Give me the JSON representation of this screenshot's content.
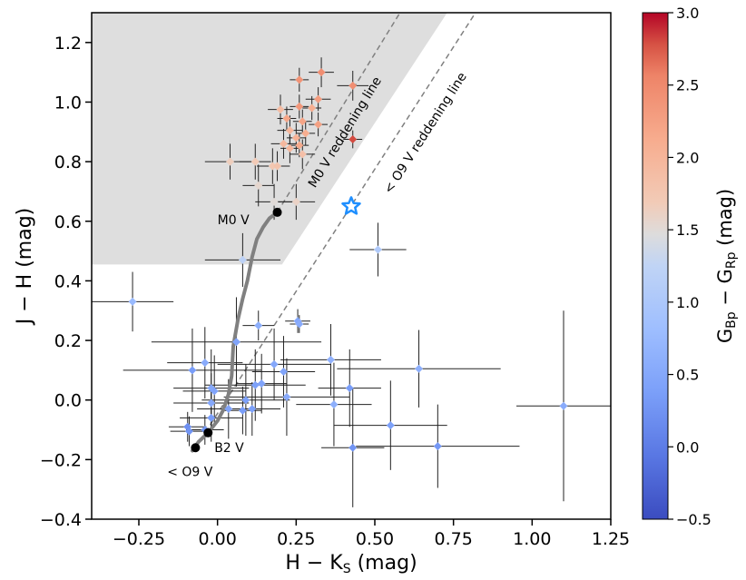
{
  "chart_data": {
    "type": "scatter",
    "xlabel": "H − K",
    "xlabel_sub": "S",
    "xlabel_unit": " (mag)",
    "ylabel": "J − H (mag)",
    "xlim": [
      -0.4,
      1.25
    ],
    "ylim": [
      -0.4,
      1.3
    ],
    "xticks": [
      -0.25,
      0.0,
      0.25,
      0.5,
      0.75,
      1.0,
      1.25
    ],
    "xtick_labels": [
      "−0.25",
      "0.00",
      "0.25",
      "0.50",
      "0.75",
      "1.00",
      "1.25"
    ],
    "yticks": [
      -0.4,
      -0.2,
      0.0,
      0.2,
      0.4,
      0.6,
      0.8,
      1.0,
      1.2
    ],
    "ytick_labels": [
      "−0.4",
      "−0.2",
      "0.0",
      "0.2",
      "0.4",
      "0.6",
      "0.8",
      "1.0",
      "1.2"
    ],
    "grid": false,
    "colorbar": {
      "label_main": "G",
      "label_sub1": "Bp",
      "label_mid": " − G",
      "label_sub2": "Rp",
      "label_unit": " (mag)",
      "range": [
        -0.5,
        3.0
      ],
      "ticks": [
        -0.5,
        0.0,
        0.5,
        1.0,
        1.5,
        2.0,
        2.5,
        3.0
      ],
      "tick_labels": [
        "−0.5",
        "0.0",
        "0.5",
        "1.0",
        "1.5",
        "2.0",
        "2.5",
        "3.0"
      ],
      "colormap": "coolwarm"
    },
    "shaded_region": [
      [
        -0.4,
        0.455
      ],
      [
        0.205,
        0.455
      ],
      [
        0.73,
        1.3
      ],
      [
        -0.4,
        1.3
      ]
    ],
    "reddening_lines": [
      {
        "label": "M0 V reddening line",
        "from": [
          0.19,
          0.63
        ],
        "to": [
          0.58,
          1.3
        ]
      },
      {
        "label": "< O9 V reddening line",
        "from": [
          -0.07,
          -0.16
        ],
        "to": [
          0.82,
          1.3
        ]
      }
    ],
    "main_sequence_track": [
      [
        -0.08,
        -0.17
      ],
      [
        -0.06,
        -0.14
      ],
      [
        -0.03,
        -0.11
      ],
      [
        0.0,
        -0.07
      ],
      [
        0.02,
        -0.03
      ],
      [
        0.035,
        0.02
      ],
      [
        0.045,
        0.08
      ],
      [
        0.05,
        0.18
      ],
      [
        0.065,
        0.27
      ],
      [
        0.08,
        0.34
      ],
      [
        0.095,
        0.4
      ],
      [
        0.11,
        0.48
      ],
      [
        0.125,
        0.54
      ],
      [
        0.145,
        0.58
      ],
      [
        0.165,
        0.61
      ],
      [
        0.19,
        0.63
      ]
    ],
    "reference_points": [
      {
        "label": "M0 V",
        "x": 0.19,
        "y": 0.63
      },
      {
        "label": "B2 V",
        "x": -0.03,
        "y": -0.11
      },
      {
        "label": "< O9 V",
        "x": -0.07,
        "y": -0.16
      }
    ],
    "highlight_star": {
      "x": 0.425,
      "y": 0.65
    },
    "points": [
      {
        "x": 0.33,
        "y": 1.1,
        "xerr": 0.04,
        "yerr": 0.05,
        "c": 2.45
      },
      {
        "x": 0.26,
        "y": 1.075,
        "xerr": 0.03,
        "yerr": 0.04,
        "c": 2.4
      },
      {
        "x": 0.43,
        "y": 1.055,
        "xerr": 0.05,
        "yerr": 0.05,
        "c": 2.45
      },
      {
        "x": 0.32,
        "y": 1.01,
        "xerr": 0.04,
        "yerr": 0.04,
        "c": 2.3
      },
      {
        "x": 0.26,
        "y": 0.985,
        "xerr": 0.03,
        "yerr": 0.04,
        "c": 2.35
      },
      {
        "x": 0.3,
        "y": 0.98,
        "xerr": 0.03,
        "yerr": 0.04,
        "c": 2.1
      },
      {
        "x": 0.2,
        "y": 0.975,
        "xerr": 0.04,
        "yerr": 0.05,
        "c": 1.9
      },
      {
        "x": 0.22,
        "y": 0.945,
        "xerr": 0.03,
        "yerr": 0.04,
        "c": 2.2
      },
      {
        "x": 0.27,
        "y": 0.935,
        "xerr": 0.03,
        "yerr": 0.04,
        "c": 2.2
      },
      {
        "x": 0.32,
        "y": 0.925,
        "xerr": 0.03,
        "yerr": 0.04,
        "c": 2.25
      },
      {
        "x": 0.23,
        "y": 0.905,
        "xerr": 0.04,
        "yerr": 0.05,
        "c": 2.0
      },
      {
        "x": 0.28,
        "y": 0.895,
        "xerr": 0.03,
        "yerr": 0.04,
        "c": 2.1
      },
      {
        "x": 0.25,
        "y": 0.88,
        "xerr": 0.03,
        "yerr": 0.05,
        "c": 2.05
      },
      {
        "x": 0.43,
        "y": 0.875,
        "xerr": 0.03,
        "yerr": 0.03,
        "c": 2.8
      },
      {
        "x": 0.21,
        "y": 0.86,
        "xerr": 0.04,
        "yerr": 0.05,
        "c": 1.95
      },
      {
        "x": 0.26,
        "y": 0.855,
        "xerr": 0.03,
        "yerr": 0.04,
        "c": 2.15
      },
      {
        "x": 0.23,
        "y": 0.845,
        "xerr": 0.03,
        "yerr": 0.05,
        "c": 2.0
      },
      {
        "x": 0.27,
        "y": 0.825,
        "xerr": 0.04,
        "yerr": 0.05,
        "c": 1.85
      },
      {
        "x": 0.04,
        "y": 0.8,
        "xerr": 0.08,
        "yerr": 0.06,
        "c": 1.65
      },
      {
        "x": 0.12,
        "y": 0.8,
        "xerr": 0.05,
        "yerr": 0.06,
        "c": 1.7
      },
      {
        "x": 0.175,
        "y": 0.785,
        "xerr": 0.05,
        "yerr": 0.06,
        "c": 1.75
      },
      {
        "x": 0.19,
        "y": 0.785,
        "xerr": 0.04,
        "yerr": 0.05,
        "c": 1.8
      },
      {
        "x": 0.18,
        "y": 0.665,
        "xerr": 0.06,
        "yerr": 0.06,
        "c": 1.5
      },
      {
        "x": 0.25,
        "y": 0.665,
        "xerr": 0.06,
        "yerr": 0.06,
        "c": 1.6
      },
      {
        "x": 0.13,
        "y": 0.72,
        "xerr": 0.05,
        "yerr": 0.07,
        "c": 1.55
      },
      {
        "x": 0.51,
        "y": 0.505,
        "xerr": 0.09,
        "yerr": 0.09,
        "c": 1.05
      },
      {
        "x": 0.08,
        "y": 0.47,
        "xerr": 0.12,
        "yerr": 0.09,
        "c": 1.2
      },
      {
        "x": -0.27,
        "y": 0.33,
        "xerr": 0.13,
        "yerr": 0.1,
        "c": 0.75
      },
      {
        "x": 0.255,
        "y": 0.265,
        "xerr": 0.04,
        "yerr": 0.04,
        "c": 0.5
      },
      {
        "x": 0.26,
        "y": 0.255,
        "xerr": 0.03,
        "yerr": 0.03,
        "c": 0.55
      },
      {
        "x": 0.13,
        "y": 0.25,
        "xerr": 0.05,
        "yerr": 0.05,
        "c": 0.6
      },
      {
        "x": 0.06,
        "y": 0.195,
        "xerr": 0.27,
        "yerr": 0.15,
        "c": 0.45
      },
      {
        "x": 0.36,
        "y": 0.135,
        "xerr": 0.16,
        "yerr": 0.12,
        "c": 0.65
      },
      {
        "x": 0.18,
        "y": 0.12,
        "xerr": 0.18,
        "yerr": 0.12,
        "c": 0.5
      },
      {
        "x": -0.04,
        "y": 0.125,
        "xerr": 0.12,
        "yerr": 0.12,
        "c": 0.55
      },
      {
        "x": 0.64,
        "y": 0.105,
        "xerr": 0.26,
        "yerr": 0.13,
        "c": 0.6
      },
      {
        "x": -0.08,
        "y": 0.1,
        "xerr": 0.22,
        "yerr": 0.14,
        "c": 0.35
      },
      {
        "x": 0.21,
        "y": 0.095,
        "xerr": 0.1,
        "yerr": 0.12,
        "c": 0.45
      },
      {
        "x": 0.12,
        "y": 0.05,
        "xerr": 0.16,
        "yerr": 0.12,
        "c": 0.4
      },
      {
        "x": 0.14,
        "y": 0.055,
        "xerr": 0.08,
        "yerr": 0.1,
        "c": 0.45
      },
      {
        "x": -0.02,
        "y": 0.04,
        "xerr": 0.12,
        "yerr": 0.13,
        "c": 0.5
      },
      {
        "x": -0.01,
        "y": 0.03,
        "xerr": 0.1,
        "yerr": 0.12,
        "c": 0.45
      },
      {
        "x": 0.42,
        "y": 0.04,
        "xerr": 0.1,
        "yerr": 0.13,
        "c": 0.35
      },
      {
        "x": 0.22,
        "y": 0.01,
        "xerr": 0.2,
        "yerr": 0.13,
        "c": 0.55
      },
      {
        "x": 0.09,
        "y": 0.0,
        "xerr": 0.14,
        "yerr": 0.12,
        "c": 0.4
      },
      {
        "x": -0.02,
        "y": -0.01,
        "xerr": 0.12,
        "yerr": 0.1,
        "c": 0.5
      },
      {
        "x": 0.37,
        "y": -0.015,
        "xerr": 0.12,
        "yerr": 0.14,
        "c": 0.6
      },
      {
        "x": 1.1,
        "y": -0.02,
        "xerr": 0.15,
        "yerr": 0.32,
        "c": 0.55
      },
      {
        "x": 0.035,
        "y": -0.03,
        "xerr": 0.1,
        "yerr": 0.1,
        "c": 0.45
      },
      {
        "x": 0.11,
        "y": -0.03,
        "xerr": 0.09,
        "yerr": 0.09,
        "c": 0.4
      },
      {
        "x": 0.08,
        "y": -0.035,
        "xerr": 0.06,
        "yerr": 0.08,
        "c": 0.35
      },
      {
        "x": -0.02,
        "y": -0.06,
        "xerr": 0.1,
        "yerr": 0.08,
        "c": 0.35
      },
      {
        "x": 0.55,
        "y": -0.085,
        "xerr": 0.18,
        "yerr": 0.15,
        "c": 0.4
      },
      {
        "x": -0.095,
        "y": -0.09,
        "xerr": 0.06,
        "yerr": 0.05,
        "c": 0.2
      },
      {
        "x": -0.09,
        "y": -0.105,
        "xerr": 0.06,
        "yerr": 0.05,
        "c": 0.25
      },
      {
        "x": -0.04,
        "y": -0.1,
        "xerr": 0.06,
        "yerr": 0.05,
        "c": 0.3
      },
      {
        "x": 0.43,
        "y": -0.16,
        "xerr": 0.1,
        "yerr": 0.2,
        "c": 0.25
      },
      {
        "x": 0.7,
        "y": -0.155,
        "xerr": 0.26,
        "yerr": 0.14,
        "c": 0.3
      }
    ]
  }
}
